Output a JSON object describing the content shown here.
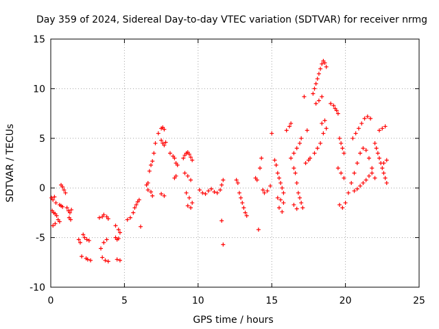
{
  "chart_data": {
    "type": "scatter",
    "title": "Day 359 of 2024, Sidereal Day-to-day VTEC variation (SDTVAR) for receiver nrmg",
    "xlabel": "GPS time / hours",
    "ylabel": "SDTVAR / TECUs",
    "xlim": [
      0,
      25
    ],
    "ylim": [
      -10,
      15
    ],
    "xticks": [
      0,
      5,
      10,
      15,
      20,
      25
    ],
    "yticks": [
      -10,
      -5,
      0,
      5,
      10,
      15
    ],
    "xtick_labels": [
      "0",
      "5",
      "10",
      "15",
      "20",
      "25"
    ],
    "ytick_labels": [
      "-10",
      "-5",
      "0",
      "5",
      "10",
      "15"
    ],
    "grid": true,
    "marker": "+",
    "color": "#ff0000",
    "series": [
      {
        "name": "SDTVAR",
        "x": [
          0.05,
          0.15,
          0.25,
          0.35,
          0.1,
          0.2,
          0.3,
          0.4,
          0.15,
          0.3,
          0.5,
          0.6,
          0.7,
          0.8,
          0.7,
          0.8,
          0.9,
          1.0,
          1.1,
          1.2,
          1.3,
          1.4,
          0.6,
          1.25,
          1.35,
          1.9,
          2.0,
          2.2,
          2.3,
          2.45,
          2.6,
          2.1,
          2.4,
          2.5,
          2.7,
          3.3,
          3.5,
          3.6,
          3.8,
          3.9,
          3.4,
          3.6,
          3.8,
          3.5,
          3.7,
          3.9,
          4.4,
          4.6,
          4.7,
          4.4,
          4.5,
          4.6,
          4.5,
          4.7,
          5.2,
          5.4,
          5.6,
          5.7,
          5.8,
          5.9,
          6.0,
          6.1,
          6.5,
          6.6,
          6.7,
          6.8,
          6.9,
          7.0,
          7.1,
          6.6,
          6.8,
          6.9,
          7.3,
          7.5,
          7.6,
          7.7,
          7.5,
          7.6,
          7.7,
          7.8,
          7.5,
          7.7,
          8.1,
          8.3,
          8.4,
          8.5,
          8.6,
          8.4,
          8.5,
          9.0,
          9.1,
          9.2,
          9.3,
          9.4,
          9.5,
          9.6,
          9.1,
          9.3,
          9.5,
          9.2,
          9.4,
          9.6,
          9.3,
          9.5,
          10.1,
          10.3,
          10.5,
          10.7,
          10.9,
          11.1,
          11.3,
          11.5,
          11.6,
          11.7,
          11.6,
          11.7,
          12.6,
          12.7,
          12.8,
          12.9,
          13.0,
          13.1,
          13.2,
          13.3,
          13.9,
          14.0,
          14.2,
          14.3,
          14.1,
          14.4,
          14.5,
          14.7,
          14.9,
          15.0,
          15.2,
          15.3,
          15.4,
          15.5,
          15.6,
          15.7,
          15.8,
          15.4,
          15.6,
          15.8,
          15.5,
          15.7,
          16.0,
          16.2,
          16.3,
          16.5,
          16.6,
          16.7,
          16.8,
          16.9,
          17.0,
          17.1,
          16.3,
          16.5,
          16.7,
          16.9,
          17.0,
          16.5,
          16.7,
          17.3,
          17.5,
          17.6,
          17.2,
          17.4,
          17.8,
          17.9,
          18.0,
          18.1,
          18.2,
          18.3,
          18.4,
          18.5,
          18.6,
          18.7,
          18.0,
          18.2,
          18.4,
          17.9,
          18.1,
          18.3,
          18.5,
          18.7,
          18.4,
          18.6,
          19.0,
          19.2,
          19.3,
          19.4,
          19.5,
          19.6,
          19.7,
          19.8,
          19.9,
          19.5,
          19.7,
          19.9,
          19.6,
          19.8,
          20.0,
          20.2,
          20.4,
          20.6,
          20.8,
          21.0,
          21.2,
          21.4,
          21.6,
          21.8,
          22.0,
          20.5,
          20.7,
          20.9,
          21.1,
          21.3,
          21.5,
          21.7,
          20.6,
          20.8,
          21.0,
          21.2,
          21.4,
          21.6,
          21.8,
          22.0,
          22.1,
          22.2,
          22.3,
          22.4,
          22.5,
          22.6,
          22.7,
          22.8,
          22.3,
          22.5,
          22.7,
          22.6,
          22.8
        ],
        "y": [
          -1.0,
          -1.2,
          -0.9,
          -1.5,
          -2.3,
          -2.5,
          -2.6,
          -2.8,
          -3.8,
          -3.6,
          -3.2,
          -1.7,
          -1.8,
          -1.9,
          0.3,
          0.1,
          -0.2,
          -0.5,
          -2.0,
          -2.3,
          -2.5,
          -2.2,
          -3.4,
          -3.0,
          -3.2,
          -5.2,
          -5.5,
          -4.7,
          -5.0,
          -5.2,
          -5.3,
          -6.9,
          -7.1,
          -7.2,
          -7.3,
          -3.0,
          -2.9,
          -2.7,
          -2.9,
          -3.1,
          -6.1,
          -5.5,
          -5.2,
          -7.0,
          -7.3,
          -7.4,
          -3.8,
          -4.2,
          -4.5,
          -5.0,
          -5.2,
          -5.1,
          -7.2,
          -7.3,
          -3.2,
          -3.0,
          -2.5,
          -2.0,
          -1.7,
          -1.4,
          -1.2,
          -3.9,
          0.3,
          0.5,
          1.7,
          2.3,
          2.7,
          3.5,
          4.5,
          -0.2,
          -0.4,
          -0.8,
          5.5,
          6.0,
          6.1,
          5.9,
          4.8,
          4.5,
          4.3,
          4.6,
          -0.6,
          -0.8,
          3.5,
          3.2,
          3.0,
          2.5,
          2.3,
          1.0,
          1.2,
          3.0,
          3.3,
          3.5,
          3.6,
          3.4,
          3.1,
          2.8,
          1.5,
          1.2,
          0.8,
          -0.5,
          -1.0,
          -1.5,
          -1.8,
          -2.0,
          -0.2,
          -0.5,
          -0.6,
          -0.3,
          -0.1,
          -0.4,
          -0.5,
          -0.2,
          0.3,
          0.8,
          -3.3,
          -5.7,
          0.8,
          0.5,
          -0.5,
          -1.0,
          -1.5,
          -2.0,
          -2.5,
          -2.8,
          1.0,
          0.8,
          2.0,
          3.0,
          -4.2,
          -0.2,
          -0.5,
          -0.3,
          0.2,
          5.5,
          2.8,
          2.3,
          1.5,
          1.0,
          0.5,
          0.0,
          -0.5,
          -1.0,
          -1.2,
          -1.5,
          -2.0,
          -2.4,
          5.8,
          6.2,
          6.5,
          2.0,
          1.5,
          0.5,
          -0.5,
          -1.0,
          -1.5,
          -2.0,
          3.0,
          3.5,
          4.0,
          4.5,
          5.0,
          -1.7,
          -2.1,
          2.5,
          2.8,
          3.0,
          9.2,
          5.8,
          9.5,
          10.0,
          10.5,
          11.0,
          11.5,
          12.0,
          12.5,
          12.8,
          12.6,
          12.2,
          8.5,
          8.8,
          9.2,
          3.5,
          4.0,
          4.5,
          5.5,
          6.0,
          6.5,
          6.8,
          8.5,
          8.3,
          8.0,
          7.8,
          7.5,
          5.0,
          4.5,
          4.0,
          3.5,
          2.0,
          1.5,
          1.0,
          -1.7,
          -2.0,
          -1.5,
          -0.5,
          0.5,
          1.5,
          2.5,
          3.5,
          4.0,
          3.8,
          3.0,
          2.0,
          1.0,
          5.0,
          5.5,
          6.0,
          6.5,
          7.0,
          7.2,
          7.0,
          -0.3,
          -0.1,
          0.2,
          0.5,
          0.8,
          1.2,
          1.5,
          4.5,
          4.0,
          3.5,
          3.0,
          2.5,
          2.0,
          1.5,
          1.0,
          0.5,
          5.8,
          6.0,
          6.2,
          2.5,
          2.8
        ]
      }
    ]
  }
}
